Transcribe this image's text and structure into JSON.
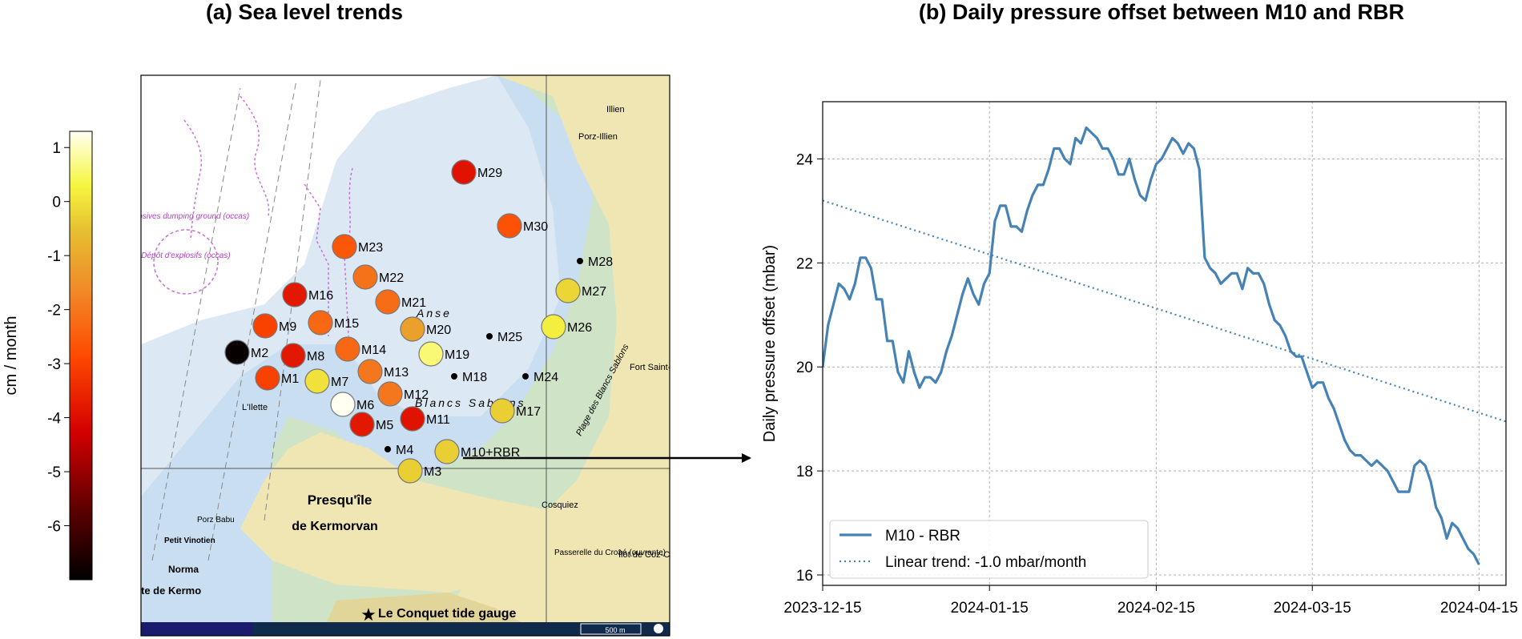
{
  "panel_a": {
    "title": "(a) Sea level trends",
    "colorbar": {
      "label": "cm / month",
      "ticks": [
        1,
        0,
        -1,
        -2,
        -3,
        -4,
        -5,
        -6
      ],
      "min": -7,
      "max": 1.3
    },
    "map_labels": {
      "presquile": "Presqu'île",
      "kermorvan": "de Kermorvan",
      "lilette": "L'Ilette",
      "anse": "Anse",
      "blancs_sablons": "Blancs Sablons",
      "plage": "Plage des Blancs Sablons",
      "explosives": "Explosives dumping ground (occas)",
      "depot": "Dépôt d'explosifs (occas)",
      "porz_illien": "Porz-Illien",
      "illien": "Illien",
      "cosquiez": "Cosquiez",
      "fort": "Fort Saint-Loui",
      "passerelle": "Passerelle du Croaé (ouvrante)",
      "ilot": "Îlot de Coz-Cast",
      "porz_babu": "Porz Babu",
      "petit_vinotien": "Petit Vinotien",
      "normand": "Norma",
      "pointe": "te de Kermo",
      "scale": "500 m",
      "gauge": "Le Conquet tide gauge"
    },
    "stations": [
      {
        "name": "M1",
        "trend": -3.0
      },
      {
        "name": "M2",
        "trend": -6.9
      },
      {
        "name": "M3",
        "trend": -0.3
      },
      {
        "name": "M4",
        "trend": null
      },
      {
        "name": "M5",
        "trend": -3.8
      },
      {
        "name": "M6",
        "trend": 1.3
      },
      {
        "name": "M7",
        "trend": 0.0
      },
      {
        "name": "M8",
        "trend": -3.8
      },
      {
        "name": "M9",
        "trend": -3.0
      },
      {
        "name": "M10+RBR",
        "trend": -0.3
      },
      {
        "name": "M11",
        "trend": -3.9
      },
      {
        "name": "M12",
        "trend": -2.0
      },
      {
        "name": "M13",
        "trend": -2.0
      },
      {
        "name": "M14",
        "trend": -2.3
      },
      {
        "name": "M15",
        "trend": -2.3
      },
      {
        "name": "M16",
        "trend": -3.8
      },
      {
        "name": "M17",
        "trend": -0.3
      },
      {
        "name": "M18",
        "trend": null
      },
      {
        "name": "M19",
        "trend": 0.6
      },
      {
        "name": "M20",
        "trend": -1.2
      },
      {
        "name": "M21",
        "trend": -2.2
      },
      {
        "name": "M22",
        "trend": -2.1
      },
      {
        "name": "M23",
        "trend": -2.6
      },
      {
        "name": "M24",
        "trend": null
      },
      {
        "name": "M25",
        "trend": null
      },
      {
        "name": "M26",
        "trend": 0.2
      },
      {
        "name": "M27",
        "trend": -0.2
      },
      {
        "name": "M28",
        "trend": null
      },
      {
        "name": "M29",
        "trend": -3.9
      },
      {
        "name": "M30",
        "trend": -2.7
      }
    ]
  },
  "chart_data": {
    "type": "line",
    "title": "(b) Daily pressure offset between M10 and RBR",
    "ylabel": "Daily pressure offset (mbar)",
    "xlabel": "",
    "xlim": [
      "2023-12-15",
      "2024-04-20"
    ],
    "ylim": [
      15.8,
      25.1
    ],
    "x_ticks": [
      "2023-12-15",
      "2024-01-15",
      "2024-02-15",
      "2024-03-15",
      "2024-04-15"
    ],
    "y_ticks": [
      16,
      18,
      20,
      22,
      24
    ],
    "grid": true,
    "legend_position": "lower left",
    "series": [
      {
        "name": "M10 - RBR",
        "color": "#4682b4",
        "style": "solid",
        "points": [
          [
            "2023-12-15",
            20.0
          ],
          [
            "2023-12-16",
            20.8
          ],
          [
            "2023-12-17",
            21.2
          ],
          [
            "2023-12-18",
            21.6
          ],
          [
            "2023-12-19",
            21.5
          ],
          [
            "2023-12-20",
            21.3
          ],
          [
            "2023-12-21",
            21.6
          ],
          [
            "2023-12-22",
            22.1
          ],
          [
            "2023-12-23",
            22.1
          ],
          [
            "2023-12-24",
            21.9
          ],
          [
            "2023-12-25",
            21.3
          ],
          [
            "2023-12-26",
            21.3
          ],
          [
            "2023-12-27",
            20.5
          ],
          [
            "2023-12-28",
            20.5
          ],
          [
            "2023-12-29",
            19.9
          ],
          [
            "2023-12-30",
            19.7
          ],
          [
            "2023-12-31",
            20.3
          ],
          [
            "2024-01-01",
            19.9
          ],
          [
            "2024-01-02",
            19.6
          ],
          [
            "2024-01-03",
            19.8
          ],
          [
            "2024-01-04",
            19.8
          ],
          [
            "2024-01-05",
            19.7
          ],
          [
            "2024-01-06",
            19.9
          ],
          [
            "2024-01-07",
            20.3
          ],
          [
            "2024-01-08",
            20.6
          ],
          [
            "2024-01-09",
            21.0
          ],
          [
            "2024-01-10",
            21.4
          ],
          [
            "2024-01-11",
            21.7
          ],
          [
            "2024-01-12",
            21.4
          ],
          [
            "2024-01-13",
            21.2
          ],
          [
            "2024-01-14",
            21.6
          ],
          [
            "2024-01-15",
            21.8
          ],
          [
            "2024-01-16",
            22.8
          ],
          [
            "2024-01-17",
            23.1
          ],
          [
            "2024-01-18",
            23.1
          ],
          [
            "2024-01-19",
            22.7
          ],
          [
            "2024-01-20",
            22.7
          ],
          [
            "2024-01-21",
            22.6
          ],
          [
            "2024-01-22",
            23.0
          ],
          [
            "2024-01-23",
            23.3
          ],
          [
            "2024-01-24",
            23.5
          ],
          [
            "2024-01-25",
            23.5
          ],
          [
            "2024-01-26",
            23.8
          ],
          [
            "2024-01-27",
            24.2
          ],
          [
            "2024-01-28",
            24.2
          ],
          [
            "2024-01-29",
            24.0
          ],
          [
            "2024-01-30",
            23.9
          ],
          [
            "2024-01-31",
            24.4
          ],
          [
            "2024-02-01",
            24.3
          ],
          [
            "2024-02-02",
            24.6
          ],
          [
            "2024-02-03",
            24.5
          ],
          [
            "2024-02-04",
            24.4
          ],
          [
            "2024-02-05",
            24.2
          ],
          [
            "2024-02-06",
            24.2
          ],
          [
            "2024-02-07",
            24.0
          ],
          [
            "2024-02-08",
            23.7
          ],
          [
            "2024-02-09",
            23.7
          ],
          [
            "2024-02-10",
            24.0
          ],
          [
            "2024-02-11",
            23.6
          ],
          [
            "2024-02-12",
            23.3
          ],
          [
            "2024-02-13",
            23.2
          ],
          [
            "2024-02-14",
            23.6
          ],
          [
            "2024-02-15",
            23.9
          ],
          [
            "2024-02-16",
            24.0
          ],
          [
            "2024-02-17",
            24.2
          ],
          [
            "2024-02-18",
            24.4
          ],
          [
            "2024-02-19",
            24.3
          ],
          [
            "2024-02-20",
            24.1
          ],
          [
            "2024-02-21",
            24.3
          ],
          [
            "2024-02-22",
            24.2
          ],
          [
            "2024-02-23",
            23.8
          ],
          [
            "2024-02-24",
            22.1
          ],
          [
            "2024-02-25",
            21.9
          ],
          [
            "2024-02-26",
            21.8
          ],
          [
            "2024-02-27",
            21.6
          ],
          [
            "2024-02-28",
            21.7
          ],
          [
            "2024-02-29",
            21.8
          ],
          [
            "2024-03-01",
            21.8
          ],
          [
            "2024-03-02",
            21.5
          ],
          [
            "2024-03-03",
            21.9
          ],
          [
            "2024-03-04",
            21.8
          ],
          [
            "2024-03-05",
            21.8
          ],
          [
            "2024-03-06",
            21.6
          ],
          [
            "2024-03-07",
            21.2
          ],
          [
            "2024-03-08",
            20.9
          ],
          [
            "2024-03-09",
            20.8
          ],
          [
            "2024-03-10",
            20.6
          ],
          [
            "2024-03-11",
            20.3
          ],
          [
            "2024-03-12",
            20.2
          ],
          [
            "2024-03-13",
            20.2
          ],
          [
            "2024-03-14",
            19.9
          ],
          [
            "2024-03-15",
            19.6
          ],
          [
            "2024-03-16",
            19.7
          ],
          [
            "2024-03-17",
            19.7
          ],
          [
            "2024-03-18",
            19.4
          ],
          [
            "2024-03-19",
            19.2
          ],
          [
            "2024-03-20",
            18.9
          ],
          [
            "2024-03-21",
            18.6
          ],
          [
            "2024-03-22",
            18.4
          ],
          [
            "2024-03-23",
            18.3
          ],
          [
            "2024-03-24",
            18.3
          ],
          [
            "2024-03-25",
            18.2
          ],
          [
            "2024-03-26",
            18.1
          ],
          [
            "2024-03-27",
            18.2
          ],
          [
            "2024-03-28",
            18.1
          ],
          [
            "2024-03-29",
            18.0
          ],
          [
            "2024-03-30",
            17.8
          ],
          [
            "2024-03-31",
            17.6
          ],
          [
            "2024-04-01",
            17.6
          ],
          [
            "2024-04-02",
            17.6
          ],
          [
            "2024-04-03",
            18.1
          ],
          [
            "2024-04-04",
            18.2
          ],
          [
            "2024-04-05",
            18.1
          ],
          [
            "2024-04-06",
            17.8
          ],
          [
            "2024-04-07",
            17.3
          ],
          [
            "2024-04-08",
            17.1
          ],
          [
            "2024-04-09",
            16.7
          ],
          [
            "2024-04-10",
            17.0
          ],
          [
            "2024-04-11",
            16.9
          ],
          [
            "2024-04-12",
            16.7
          ],
          [
            "2024-04-13",
            16.5
          ],
          [
            "2024-04-14",
            16.4
          ],
          [
            "2024-04-15",
            16.2
          ]
        ]
      },
      {
        "name": "Linear trend: -1.0 mbar/month",
        "color": "#4682b4",
        "style": "dotted",
        "points": [
          [
            "2023-12-15",
            23.2
          ],
          [
            "2024-04-20",
            18.95
          ]
        ]
      }
    ]
  }
}
